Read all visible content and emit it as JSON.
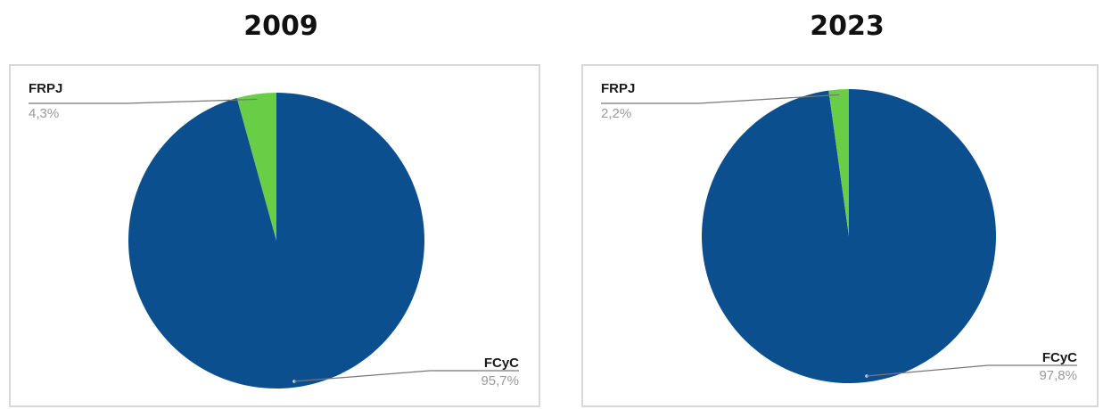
{
  "colors": {
    "FCyC": "#0b4f8e",
    "FRPJ": "#6acd46",
    "leader": "#777777"
  },
  "chart_data": [
    {
      "type": "pie",
      "title": "2009",
      "slices": [
        {
          "label": "FRPJ",
          "value": 4.3,
          "display": "4,3%"
        },
        {
          "label": "FCyC",
          "value": 95.7,
          "display": "95,7%"
        }
      ]
    },
    {
      "type": "pie",
      "title": "2023",
      "slices": [
        {
          "label": "FRPJ",
          "value": 2.2,
          "display": "2,2%"
        },
        {
          "label": "FCyC",
          "value": 97.8,
          "display": "97,8%"
        }
      ]
    }
  ]
}
